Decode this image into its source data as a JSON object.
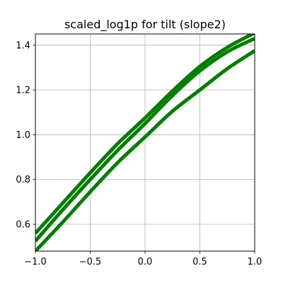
{
  "chart_data": {
    "type": "line",
    "title": "scaled_log1p for tilt (slope2)",
    "xlabel": "",
    "ylabel": "",
    "xlim": [
      -1.0,
      1.0
    ],
    "ylim": [
      0.48,
      1.45
    ],
    "grid": true,
    "x_ticks": [
      -1.0,
      -0.5,
      0.0,
      0.5,
      1.0
    ],
    "x_tick_labels": [
      "−1.0",
      "−0.5",
      "0.0",
      "0.5",
      "1.0"
    ],
    "y_ticks": [
      0.6,
      0.8,
      1.0,
      1.2,
      1.4
    ],
    "y_tick_labels": [
      "0.6",
      "0.8",
      "1.0",
      "1.2",
      "1.4"
    ],
    "colors": {
      "series": "#008000",
      "grid": "#b0b0b0",
      "axes": "#000000"
    },
    "series": [
      {
        "x": [
          -1.0,
          -0.75,
          -0.5,
          -0.25,
          0.0,
          0.25,
          0.5,
          0.75,
          1.0
        ],
        "y": [
          0.525,
          0.665,
          0.8,
          0.93,
          1.05,
          1.175,
          1.285,
          1.37,
          1.43
        ]
      },
      {
        "x": [
          -1.0,
          -0.75,
          -0.5,
          -0.25,
          0.0,
          0.25,
          0.5,
          0.75,
          1.0
        ],
        "y": [
          0.56,
          0.695,
          0.83,
          0.96,
          1.075,
          1.195,
          1.305,
          1.39,
          1.455
        ]
      },
      {
        "x": [
          -1.0,
          -0.75,
          -0.5,
          -0.25,
          0.0,
          0.25,
          0.5,
          0.75,
          1.0
        ],
        "y": [
          0.48,
          0.61,
          0.745,
          0.875,
          0.99,
          1.105,
          1.2,
          1.295,
          1.375
        ]
      }
    ]
  }
}
